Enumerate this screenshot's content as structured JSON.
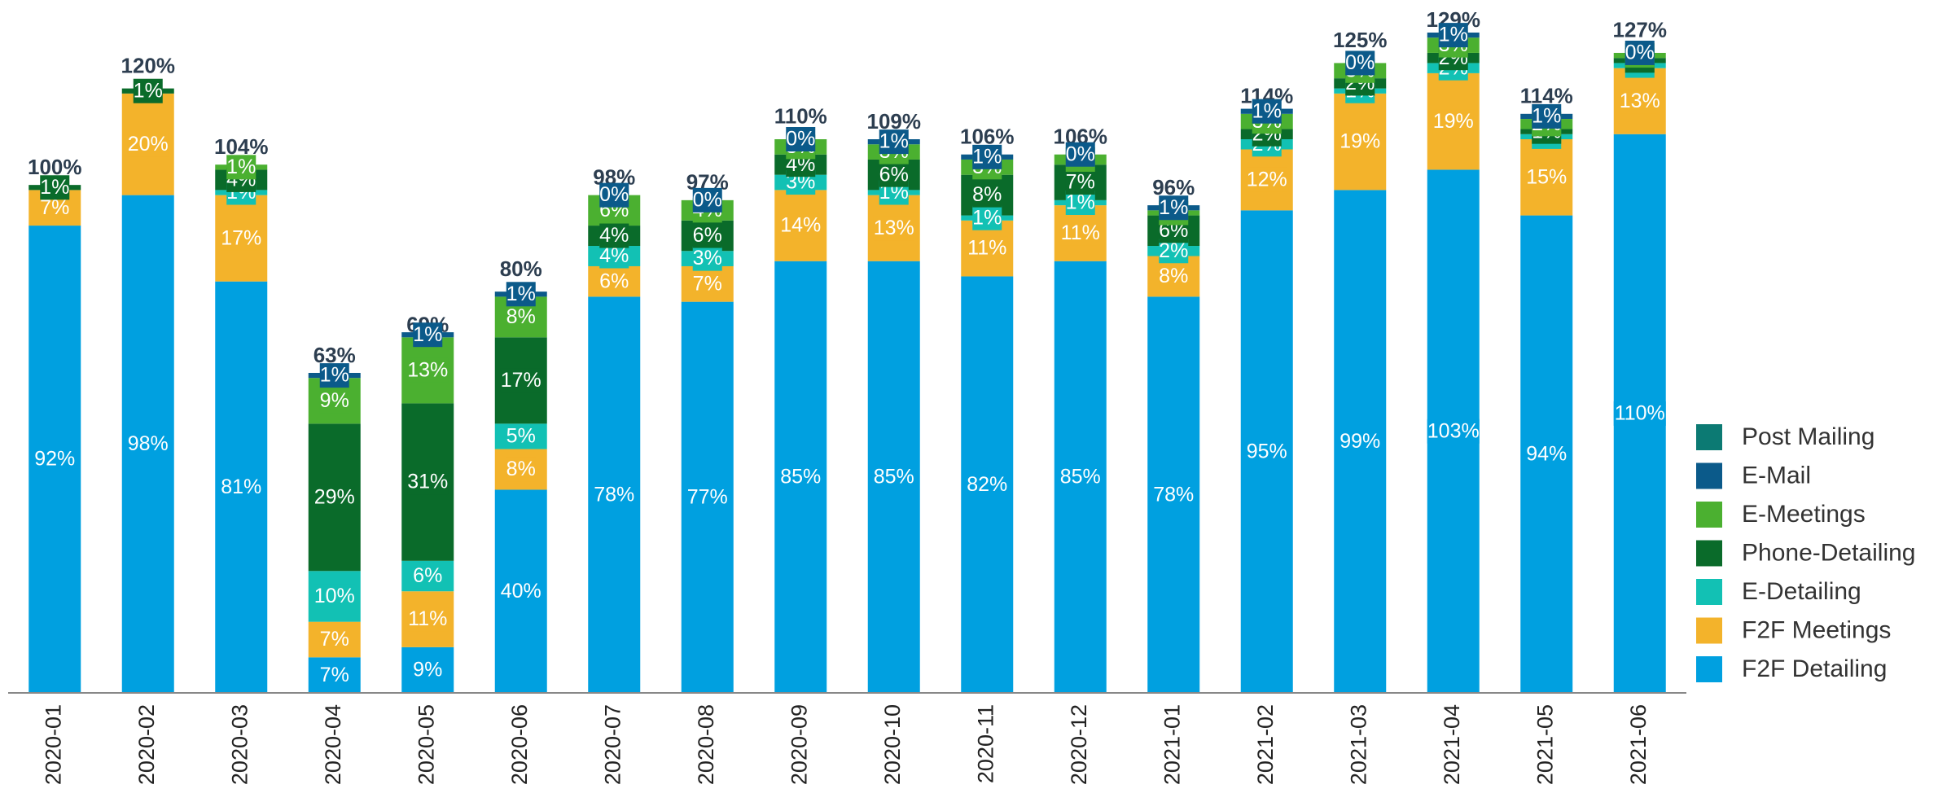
{
  "chart_data": {
    "type": "stacked_bar",
    "categories": [
      "2020-01",
      "2020-02",
      "2020-03",
      "2020-04",
      "2020-05",
      "2020-06",
      "2020-07",
      "2020-08",
      "2020-09",
      "2020-10",
      "2020-11",
      "2020-12",
      "2021-01",
      "2021-02",
      "2021-03",
      "2021-04",
      "2021-05",
      "2021-06"
    ],
    "series": [
      {
        "name": "F2F Detailing",
        "color": "#00a0e0",
        "values": [
          92,
          98,
          81,
          7,
          9,
          40,
          78,
          77,
          85,
          85,
          82,
          85,
          78,
          95,
          99,
          103,
          94,
          110
        ],
        "value_labels": [
          "92%",
          "98%",
          "81%",
          "7%",
          "9%",
          "40%",
          "78%",
          "77%",
          "85%",
          "85%",
          "82%",
          "85%",
          "78%",
          "95%",
          "99%",
          "103%",
          "94%",
          "110%"
        ]
      },
      {
        "name": "F2F Meetings",
        "color": "#f3b32b",
        "values": [
          7,
          20,
          17,
          7,
          11,
          8,
          6,
          7,
          14,
          13,
          11,
          11,
          8,
          12,
          19,
          19,
          15,
          13
        ],
        "value_labels": [
          "7%",
          "20%",
          "17%",
          "7%",
          "11%",
          "8%",
          "6%",
          "7%",
          "14%",
          "13%",
          "11%",
          "11%",
          "8%",
          "12%",
          "19%",
          "19%",
          "15%",
          "13%"
        ]
      },
      {
        "name": "E-Detailing",
        "color": "#12c1b4",
        "values": [
          0,
          0,
          1,
          10,
          6,
          5,
          4,
          3,
          3,
          1,
          1,
          1,
          2,
          2,
          1,
          2,
          1,
          1
        ],
        "value_labels": [
          null,
          null,
          "1%",
          "10%",
          "6%",
          "5%",
          "4%",
          "3%",
          "3%",
          "1%",
          "1%",
          "1%",
          "2%",
          "2%",
          "1%",
          "2%",
          "1%",
          "1%"
        ]
      },
      {
        "name": "Phone-Detailing",
        "color": "#0a6b2a",
        "values": [
          1,
          1,
          4,
          29,
          31,
          17,
          4,
          6,
          4,
          6,
          8,
          7,
          6,
          2,
          2,
          2,
          1,
          1
        ],
        "value_labels": [
          "1%",
          "1%",
          "4%",
          "29%",
          "31%",
          "17%",
          "4%",
          "6%",
          "4%",
          "6%",
          "8%",
          "7%",
          "6%",
          "2%",
          "2%",
          "2%",
          "1%",
          "1%"
        ]
      },
      {
        "name": "E-Meetings",
        "color": "#4bb030",
        "values": [
          0,
          0,
          1,
          9,
          13,
          8,
          6,
          4,
          3,
          3,
          3,
          2,
          1,
          3,
          3,
          3,
          2,
          1
        ],
        "value_labels": [
          null,
          null,
          "1%",
          "9%",
          "13%",
          "8%",
          "6%",
          "4%",
          "3%",
          "3%",
          "3%",
          "2%",
          "1%",
          "3%",
          "3%",
          "3%",
          "2%",
          "1%"
        ]
      },
      {
        "name": "E-Mail",
        "color": "#0b5a8a",
        "values": [
          0,
          0,
          0,
          1,
          1,
          1,
          0,
          0,
          0,
          1,
          1,
          0,
          1,
          1,
          0,
          1,
          1,
          0
        ],
        "value_labels": [
          null,
          null,
          null,
          "1%",
          "1%",
          "1%",
          "0%",
          "0%",
          "0%",
          "1%",
          "1%",
          "0%",
          "1%",
          "1%",
          "0%",
          "1%",
          "1%",
          "0%"
        ]
      },
      {
        "name": "Post Mailing",
        "color": "#0c7a73",
        "values": [
          0,
          0,
          0,
          0,
          0,
          0,
          0,
          0,
          0,
          0,
          0,
          0,
          0,
          0,
          0,
          0,
          0,
          0
        ],
        "value_labels": [
          null,
          null,
          null,
          null,
          null,
          null,
          null,
          null,
          null,
          null,
          null,
          null,
          null,
          null,
          null,
          null,
          null,
          null
        ]
      }
    ],
    "totals": [
      100,
      120,
      104,
      63,
      69,
      80,
      98,
      97,
      110,
      109,
      106,
      106,
      96,
      114,
      125,
      129,
      114,
      127
    ],
    "total_labels": [
      "100%",
      "120%",
      "104%",
      "63%",
      "69%",
      "80%",
      "98%",
      "97%",
      "110%",
      "109%",
      "106%",
      "106%",
      "96%",
      "114%",
      "125%",
      "129%",
      "114%",
      "127%"
    ],
    "ylim": [
      0,
      130
    ],
    "legend": "right"
  }
}
